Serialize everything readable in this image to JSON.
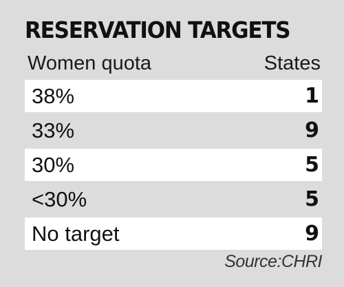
{
  "chart_data": {
    "type": "table",
    "title": "RESERVATION TARGETS",
    "columns": [
      "Women quota",
      "States"
    ],
    "rows": [
      {
        "category": "38%",
        "value": 1
      },
      {
        "category": "33%",
        "value": 9
      },
      {
        "category": "30%",
        "value": 5
      },
      {
        "category": "<30%",
        "value": 5
      },
      {
        "category": "No target",
        "value": 9
      }
    ],
    "source": "Source:CHRI"
  },
  "colors": {
    "background": "#dcdcdc",
    "row_highlight": "#ffffff",
    "text": "#111111"
  }
}
